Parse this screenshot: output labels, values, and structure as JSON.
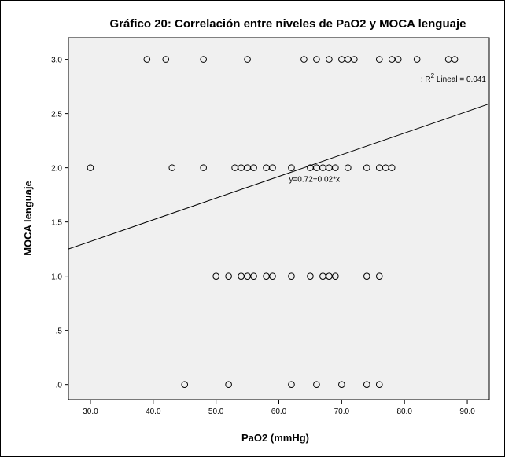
{
  "chart_data": {
    "type": "scatter",
    "title": "Gráfico 20: Correlación entre niveles de PaO2 y MOCA lenguaje",
    "xlabel": "PaO2 (mmHg)",
    "ylabel": "MOCA lenguaje",
    "xlim": [
      26.5,
      93.5
    ],
    "ylim": [
      -0.14,
      3.2
    ],
    "xticks": [
      30,
      40,
      50,
      60,
      70,
      80,
      90
    ],
    "xtick_labels": [
      "30.0",
      "40.0",
      "50.0",
      "60.0",
      "70.0",
      "80.0",
      "90.0"
    ],
    "yticks": [
      0,
      0.5,
      1,
      1.5,
      2,
      2.5,
      3
    ],
    "ytick_labels": [
      ".0",
      ".5",
      "1.0",
      "1.5",
      "2.0",
      "2.5",
      "3.0"
    ],
    "grid": false,
    "colors": {
      "plot_bg": "#f0f0f0",
      "marker_stroke": "#000000",
      "line": "#000000"
    },
    "points": [
      {
        "x": 39,
        "y": 3
      },
      {
        "x": 42,
        "y": 3
      },
      {
        "x": 48,
        "y": 3
      },
      {
        "x": 55,
        "y": 3
      },
      {
        "x": 64,
        "y": 3
      },
      {
        "x": 66,
        "y": 3
      },
      {
        "x": 68,
        "y": 3
      },
      {
        "x": 70,
        "y": 3
      },
      {
        "x": 71,
        "y": 3
      },
      {
        "x": 72,
        "y": 3
      },
      {
        "x": 76,
        "y": 3
      },
      {
        "x": 78,
        "y": 3
      },
      {
        "x": 79,
        "y": 3
      },
      {
        "x": 82,
        "y": 3
      },
      {
        "x": 87,
        "y": 3
      },
      {
        "x": 88,
        "y": 3
      },
      {
        "x": 30,
        "y": 2
      },
      {
        "x": 43,
        "y": 2
      },
      {
        "x": 48,
        "y": 2
      },
      {
        "x": 53,
        "y": 2
      },
      {
        "x": 54,
        "y": 2
      },
      {
        "x": 55,
        "y": 2
      },
      {
        "x": 56,
        "y": 2
      },
      {
        "x": 58,
        "y": 2
      },
      {
        "x": 59,
        "y": 2
      },
      {
        "x": 62,
        "y": 2
      },
      {
        "x": 65,
        "y": 2
      },
      {
        "x": 66,
        "y": 2
      },
      {
        "x": 67,
        "y": 2
      },
      {
        "x": 68,
        "y": 2
      },
      {
        "x": 69,
        "y": 2
      },
      {
        "x": 71,
        "y": 2
      },
      {
        "x": 74,
        "y": 2
      },
      {
        "x": 76,
        "y": 2
      },
      {
        "x": 77,
        "y": 2
      },
      {
        "x": 78,
        "y": 2
      },
      {
        "x": 50,
        "y": 1
      },
      {
        "x": 52,
        "y": 1
      },
      {
        "x": 54,
        "y": 1
      },
      {
        "x": 55,
        "y": 1
      },
      {
        "x": 56,
        "y": 1
      },
      {
        "x": 58,
        "y": 1
      },
      {
        "x": 59,
        "y": 1
      },
      {
        "x": 62,
        "y": 1
      },
      {
        "x": 65,
        "y": 1
      },
      {
        "x": 67,
        "y": 1
      },
      {
        "x": 68,
        "y": 1
      },
      {
        "x": 69,
        "y": 1
      },
      {
        "x": 74,
        "y": 1
      },
      {
        "x": 76,
        "y": 1
      },
      {
        "x": 45,
        "y": 0
      },
      {
        "x": 52,
        "y": 0
      },
      {
        "x": 62,
        "y": 0
      },
      {
        "x": 66,
        "y": 0
      },
      {
        "x": 70,
        "y": 0
      },
      {
        "x": 74,
        "y": 0
      },
      {
        "x": 76,
        "y": 0
      }
    ],
    "fit_line": {
      "intercept": 0.72,
      "slope": 0.02,
      "label": "y=0.72+0.02*x",
      "label_x": 62,
      "label_y": 1.93
    },
    "r2_label": {
      "prefix": ": R",
      "sup": "2",
      "suffix": " Lineal = 0.041"
    }
  }
}
